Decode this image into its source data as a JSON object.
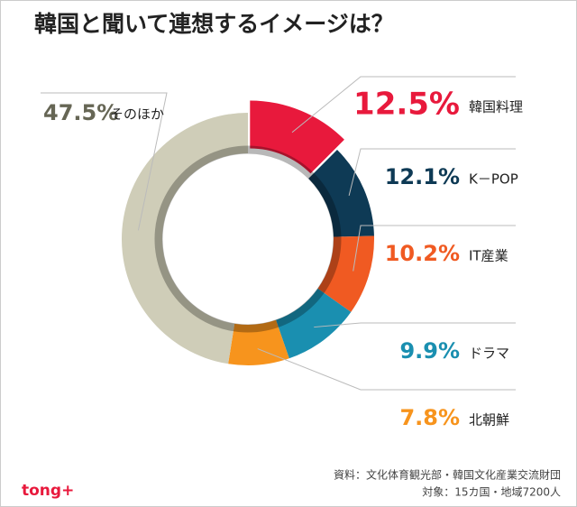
{
  "chart_data": {
    "type": "donut",
    "title": "韓国と聞いて連想するイメージは？",
    "categories": [
      "韓国料理",
      "K－POP",
      "IT産業",
      "ドラマ",
      "北朝鮮",
      "そのほか"
    ],
    "values": [
      12.5,
      12.1,
      10.2,
      9.9,
      7.8,
      47.5
    ],
    "value_labels": [
      "12.5%",
      "12.1%",
      "10.2%",
      "9.9%",
      "7.8%",
      "47.5%"
    ],
    "colors": [
      "#e8193c",
      "#0e3a55",
      "#f05a22",
      "#1a8fb0",
      "#f7941d",
      "#cfcdb8"
    ],
    "source": [
      "資料：文化体育観光部・韓国文化産業交流財団",
      "対象：15カ国・地域7200人"
    ],
    "logo": "tong+"
  }
}
